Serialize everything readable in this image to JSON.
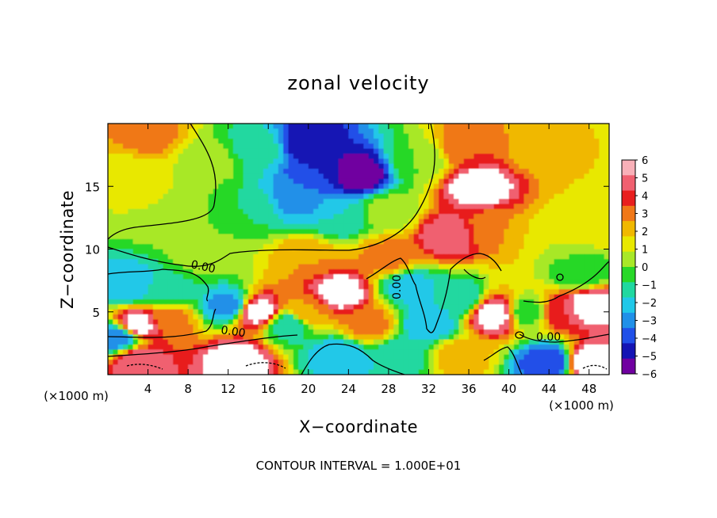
{
  "chart_data": {
    "type": "heatmap",
    "title": "zonal velocity",
    "xlabel": "X−coordinate",
    "ylabel": "Z−coordinate",
    "x_unit": "(×1000 m)",
    "z_unit": "(×1000 m)",
    "xlim": [
      0,
      50
    ],
    "ylim": [
      0,
      20
    ],
    "x_ticks": [
      4,
      8,
      12,
      16,
      20,
      24,
      28,
      32,
      36,
      40,
      44,
      48
    ],
    "y_ticks": [
      5,
      10,
      15
    ],
    "colorbar": {
      "ticks": [
        "6",
        "5",
        "4",
        "3",
        "2",
        "1",
        "0",
        "−1",
        "−2",
        "−3",
        "−4",
        "−5",
        "−6"
      ],
      "colors": [
        "#f8b0b8",
        "#f06070",
        "#e81e1e",
        "#f07818",
        "#f0b800",
        "#e8e800",
        "#a8e828",
        "#28d828",
        "#20d8a0",
        "#20c8e8",
        "#2090e8",
        "#2050e8",
        "#1414b4",
        "#7000a0"
      ]
    },
    "contour_labels": [
      "0.00",
      "0.00",
      "0.00",
      "0.00"
    ],
    "contour_interval": "CONTOUR INTERVAL = 1.000E+01",
    "blobs": [
      {
        "x": 4,
        "z": 19,
        "v": 3.5
      },
      {
        "x": 2,
        "z": 16,
        "v": 1.5
      },
      {
        "x": 6,
        "z": 13,
        "v": 1
      },
      {
        "x": 10,
        "z": 17,
        "v": 0.5
      },
      {
        "x": 15,
        "z": 18,
        "v": -1.5
      },
      {
        "x": 14,
        "z": 13,
        "v": -1
      },
      {
        "x": 21,
        "z": 16,
        "v": -5
      },
      {
        "x": 19,
        "z": 14,
        "v": -3.5
      },
      {
        "x": 25,
        "z": 16,
        "v": -7
      },
      {
        "x": 20,
        "z": 18.5,
        "v": -6
      },
      {
        "x": 23,
        "z": 12.5,
        "v": -2
      },
      {
        "x": 28,
        "z": 13,
        "v": 0.5
      },
      {
        "x": 31,
        "z": 17,
        "v": 0
      },
      {
        "x": 37,
        "z": 15,
        "v": 7
      },
      {
        "x": 36,
        "z": 18,
        "v": 4
      },
      {
        "x": 34,
        "z": 11,
        "v": 6
      },
      {
        "x": 38.5,
        "z": 11.5,
        "v": 3
      },
      {
        "x": 43,
        "z": 18,
        "v": 2.5
      },
      {
        "x": 48,
        "z": 17,
        "v": 2
      },
      {
        "x": 45,
        "z": 11,
        "v": 1
      },
      {
        "x": 49,
        "z": 12,
        "v": 1.5
      },
      {
        "x": 47,
        "z": 8,
        "v": -1
      },
      {
        "x": 10,
        "z": 9.5,
        "v": 0.5
      },
      {
        "x": 20,
        "z": 9.3,
        "v": 3
      },
      {
        "x": 28,
        "z": 9.3,
        "v": 3.5
      },
      {
        "x": 2,
        "z": 7,
        "v": -3
      },
      {
        "x": 6,
        "z": 6.5,
        "v": -1.5
      },
      {
        "x": 3,
        "z": 4,
        "v": 7
      },
      {
        "x": 6,
        "z": 4.5,
        "v": 3.5
      },
      {
        "x": 1,
        "z": 3,
        "v": -4
      },
      {
        "x": 12,
        "z": 5.5,
        "v": -3.5
      },
      {
        "x": 15,
        "z": 5,
        "v": 7
      },
      {
        "x": 18,
        "z": 4,
        "v": -2
      },
      {
        "x": 23,
        "z": 6.5,
        "v": 7
      },
      {
        "x": 20,
        "z": 5,
        "v": 3
      },
      {
        "x": 26,
        "z": 4,
        "v": 3.5
      },
      {
        "x": 30,
        "z": 7,
        "v": -2.5
      },
      {
        "x": 32,
        "z": 4,
        "v": -3
      },
      {
        "x": 35,
        "z": 6,
        "v": -2
      },
      {
        "x": 38.5,
        "z": 4.8,
        "v": 7
      },
      {
        "x": 42,
        "z": 5,
        "v": -1
      },
      {
        "x": 45,
        "z": 5,
        "v": 5
      },
      {
        "x": 48,
        "z": 5.5,
        "v": 7
      },
      {
        "x": 44,
        "z": 1,
        "v": -5
      },
      {
        "x": 13,
        "z": 1,
        "v": 7
      },
      {
        "x": 3,
        "z": 1,
        "v": 6
      },
      {
        "x": 23,
        "z": 1.5,
        "v": -3
      },
      {
        "x": 29,
        "z": 1.5,
        "v": -2
      },
      {
        "x": 35,
        "z": 1.5,
        "v": 2.5
      },
      {
        "x": 48,
        "z": 1,
        "v": 7
      }
    ],
    "background_value": 0.5
  }
}
